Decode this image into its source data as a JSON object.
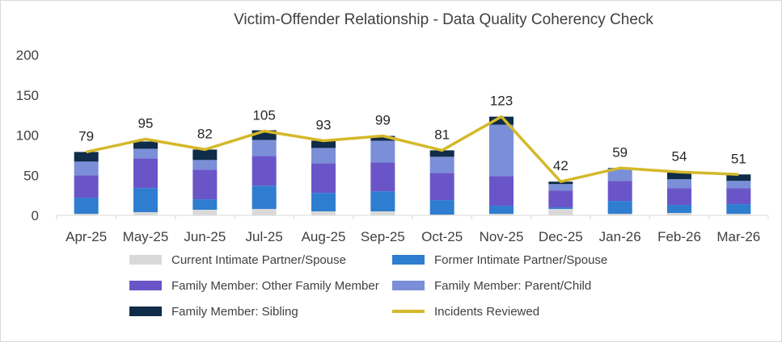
{
  "chart_data": {
    "type": "bar",
    "stacked": true,
    "title": "Victim-Offender Relationship - Data Quality Coherency Check",
    "categories": [
      "Apr-25",
      "May-25",
      "Jun-25",
      "Jul-25",
      "Aug-25",
      "Sep-25",
      "Oct-25",
      "Nov-25",
      "Dec-25",
      "Jan-26",
      "Feb-26",
      "Mar-26"
    ],
    "ylim": [
      0,
      200
    ],
    "yticks": [
      0,
      50,
      100,
      150,
      200
    ],
    "grid": false,
    "legend_position": "bottom",
    "series": [
      {
        "name": "Current Intimate Partner/Spouse",
        "color": "#d9d9d9",
        "values": [
          2,
          4,
          7,
          8,
          5,
          5,
          1,
          2,
          8,
          2,
          3,
          2
        ]
      },
      {
        "name": "Former Intimate Partner/Spouse",
        "color": "#2e7dd0",
        "values": [
          20,
          30,
          13,
          29,
          23,
          25,
          18,
          10,
          2,
          16,
          10,
          12
        ]
      },
      {
        "name": "Family Member: Other Family Member",
        "color": "#6a55c8",
        "values": [
          28,
          37,
          37,
          37,
          37,
          36,
          34,
          37,
          21,
          25,
          21,
          20
        ]
      },
      {
        "name": "Family Member: Parent/Child",
        "color": "#7a8fd8",
        "values": [
          17,
          12,
          12,
          20,
          19,
          27,
          20,
          64,
          8,
          15,
          11,
          9
        ]
      },
      {
        "name": "Family Member: Sibling",
        "color": "#0f2c48",
        "values": [
          12,
          9,
          13,
          12,
          9,
          6,
          8,
          10,
          3,
          1,
          9,
          8
        ]
      }
    ],
    "line_series": {
      "name": "Incidents Reviewed",
      "color": "#d4b829",
      "values": [
        79,
        95,
        82,
        105,
        93,
        99,
        81,
        123,
        42,
        59,
        54,
        51
      ]
    }
  }
}
